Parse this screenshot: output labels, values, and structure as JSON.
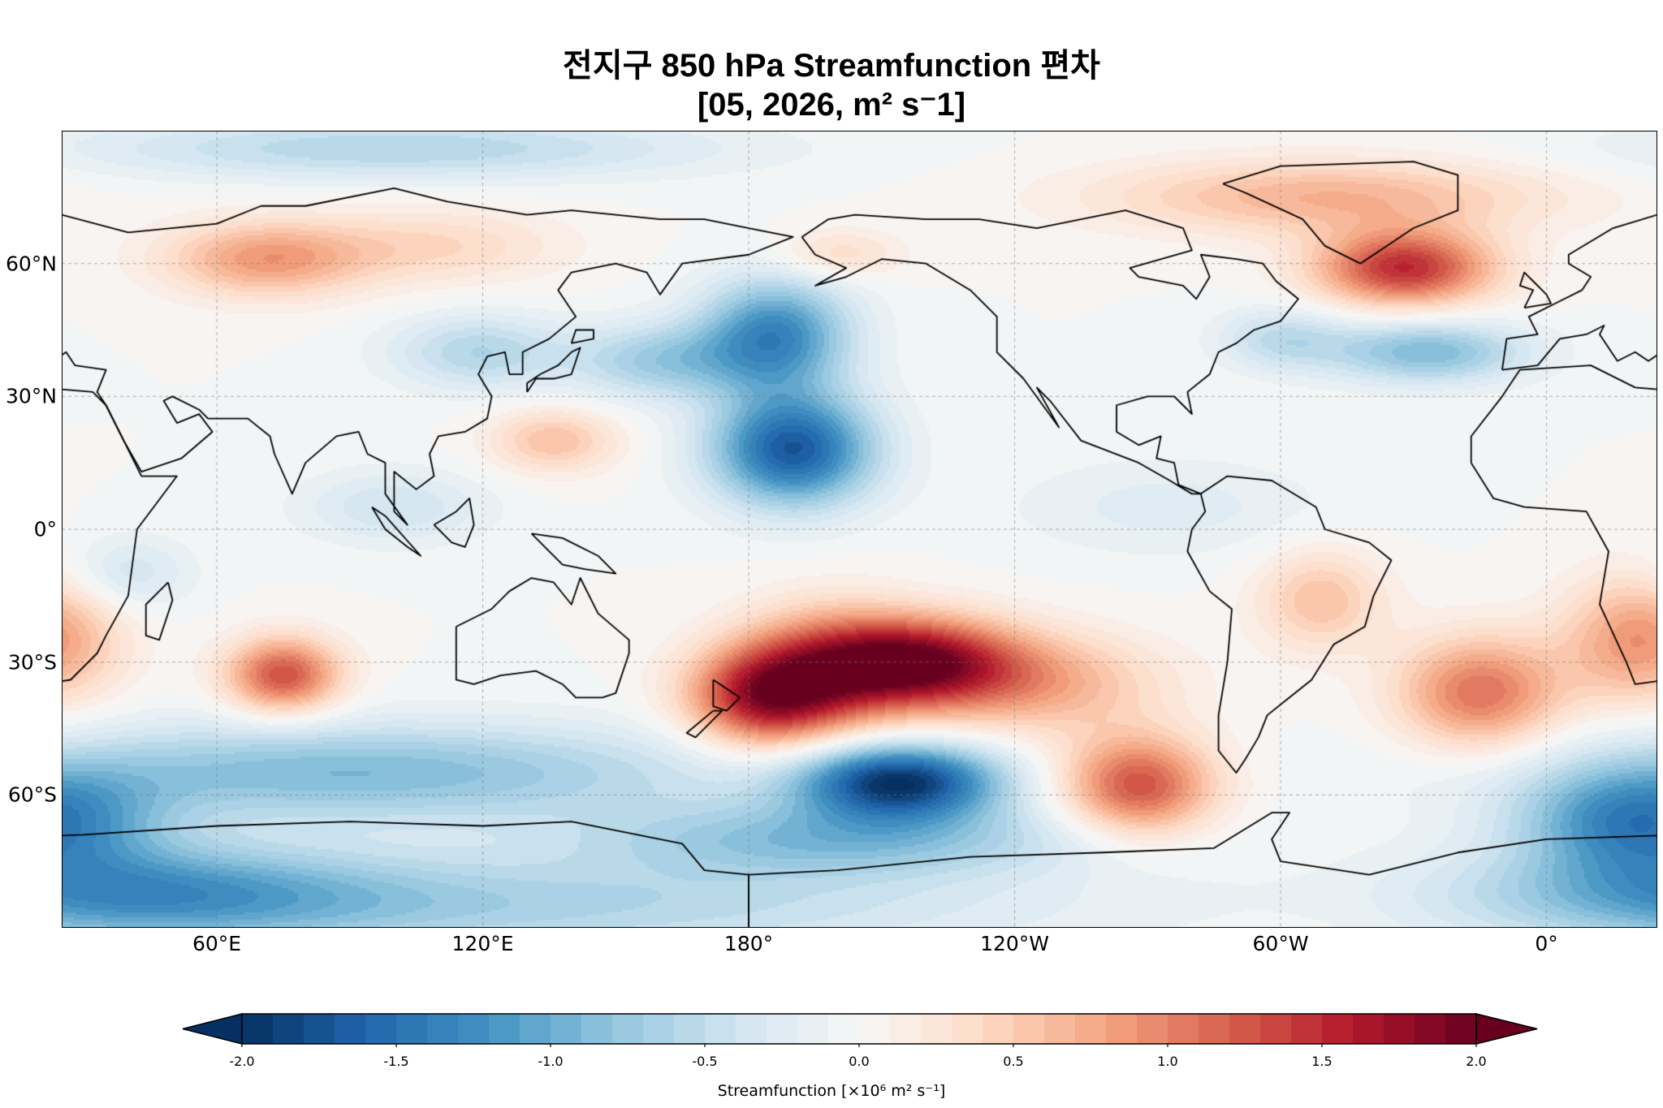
{
  "chart_data": {
    "type": "heatmap",
    "title_line1": "전지구 850 hPa Streamfunction 편차",
    "title_line2": "[05, 2026, m² s⁻1]",
    "lon_range": [
      25,
      385
    ],
    "lat_range": [
      -90,
      90
    ],
    "lat_ticks": [
      "60°N",
      "30°N",
      "0°",
      "30°S",
      "60°S"
    ],
    "lat_tick_values": [
      60,
      30,
      0,
      -30,
      -60
    ],
    "lon_ticks": [
      "60°E",
      "120°E",
      "180°",
      "120°W",
      "60°W",
      "0°"
    ],
    "lon_tick_values": [
      60,
      120,
      180,
      240,
      300,
      360
    ],
    "grid": true,
    "colormap": [
      "#053061",
      "#2166ac",
      "#4393c3",
      "#92c5de",
      "#d1e5f0",
      "#f7f7f7",
      "#fddbc7",
      "#f4a582",
      "#d6604d",
      "#b2182b",
      "#67001f"
    ],
    "levels": {
      "min": -2.0,
      "max": 2.0,
      "step": 0.1,
      "extend": "both"
    },
    "colorbar_ticks": [
      "-2.0",
      "-1.5",
      "-1.0",
      "-0.5",
      "0.0",
      "0.5",
      "1.0",
      "1.5",
      "2.0"
    ],
    "colorbar_tick_values": [
      -2.0,
      -1.5,
      -1.0,
      -0.5,
      0.0,
      0.5,
      1.0,
      1.5,
      2.0
    ],
    "colorbar_label": "Streamfunction [×10⁶ m² s⁻¹]",
    "anomaly_centers": [
      {
        "lon": 75,
        "lat": -33,
        "amp": 1.3,
        "slon": 9,
        "slat": 6
      },
      {
        "lon": 183,
        "lat": -38,
        "amp": 1.5,
        "slon": 12,
        "slat": 8
      },
      {
        "lon": 218,
        "lat": -30,
        "amp": 1.7,
        "slon": 16,
        "slat": 7
      },
      {
        "lon": 198,
        "lat": -32,
        "amp": 1.0,
        "slon": 14,
        "slat": 10
      },
      {
        "lon": 268,
        "lat": -58,
        "amp": 1.3,
        "slon": 12,
        "slat": 8
      },
      {
        "lon": 245,
        "lat": -35,
        "amp": 0.7,
        "slon": 20,
        "slat": 8
      },
      {
        "lon": 214,
        "lat": -57,
        "amp": -1.9,
        "slon": 16,
        "slat": 6
      },
      {
        "lon": 190,
        "lat": 18,
        "amp": -1.7,
        "slon": 13,
        "slat": 9
      },
      {
        "lon": 186,
        "lat": 44,
        "amp": -1.3,
        "slon": 12,
        "slat": 9
      },
      {
        "lon": 160,
        "lat": 38,
        "amp": -0.7,
        "slon": 14,
        "slat": 6
      },
      {
        "lon": 328,
        "lat": 59,
        "amp": 1.5,
        "slon": 14,
        "slat": 6
      },
      {
        "lon": 310,
        "lat": 75,
        "amp": 0.7,
        "slon": 35,
        "slat": 6
      },
      {
        "lon": 333,
        "lat": 40,
        "amp": -0.9,
        "slon": 16,
        "slat": 5
      },
      {
        "lon": 300,
        "lat": 43,
        "amp": -0.5,
        "slon": 10,
        "slat": 5
      },
      {
        "lon": 71,
        "lat": 61,
        "amp": 0.85,
        "slon": 16,
        "slat": 6
      },
      {
        "lon": 110,
        "lat": 64,
        "amp": 0.4,
        "slon": 20,
        "slat": 6
      },
      {
        "lon": 345,
        "lat": -37,
        "amp": 1.1,
        "slon": 13,
        "slat": 9
      },
      {
        "lon": 381,
        "lat": -25,
        "amp": 0.9,
        "slon": 12,
        "slat": 10
      },
      {
        "lon": 309,
        "lat": -16,
        "amp": 0.6,
        "slon": 10,
        "slat": 8
      },
      {
        "lon": 136,
        "lat": 20,
        "amp": 0.6,
        "slon": 10,
        "slat": 5
      },
      {
        "lon": 119,
        "lat": 40,
        "amp": -0.6,
        "slon": 14,
        "slat": 6
      },
      {
        "lon": 90,
        "lat": -55,
        "amp": -0.9,
        "slon": 60,
        "slat": 8
      },
      {
        "lon": 380,
        "lat": -66,
        "amp": -1.2,
        "slon": 18,
        "slat": 8
      },
      {
        "lon": 40,
        "lat": -82,
        "amp": -1.0,
        "slon": 40,
        "slat": 8
      },
      {
        "lon": 200,
        "lat": -70,
        "amp": -0.8,
        "slon": 40,
        "slat": 6
      },
      {
        "lon": 130,
        "lat": -85,
        "amp": -0.6,
        "slon": 80,
        "slat": 8
      },
      {
        "lon": 100,
        "lat": 86,
        "amp": -0.6,
        "slon": 50,
        "slat": 5
      },
      {
        "lon": 40,
        "lat": -10,
        "amp": -0.4,
        "slon": 10,
        "slat": 6
      },
      {
        "lon": 100,
        "lat": 5,
        "amp": -0.4,
        "slon": 15,
        "slat": 6
      },
      {
        "lon": 275,
        "lat": 5,
        "amp": -0.25,
        "slon": 25,
        "slat": 8
      },
      {
        "lon": 200,
        "lat": 62,
        "amp": 0.4,
        "slon": 10,
        "slat": 4
      }
    ]
  }
}
